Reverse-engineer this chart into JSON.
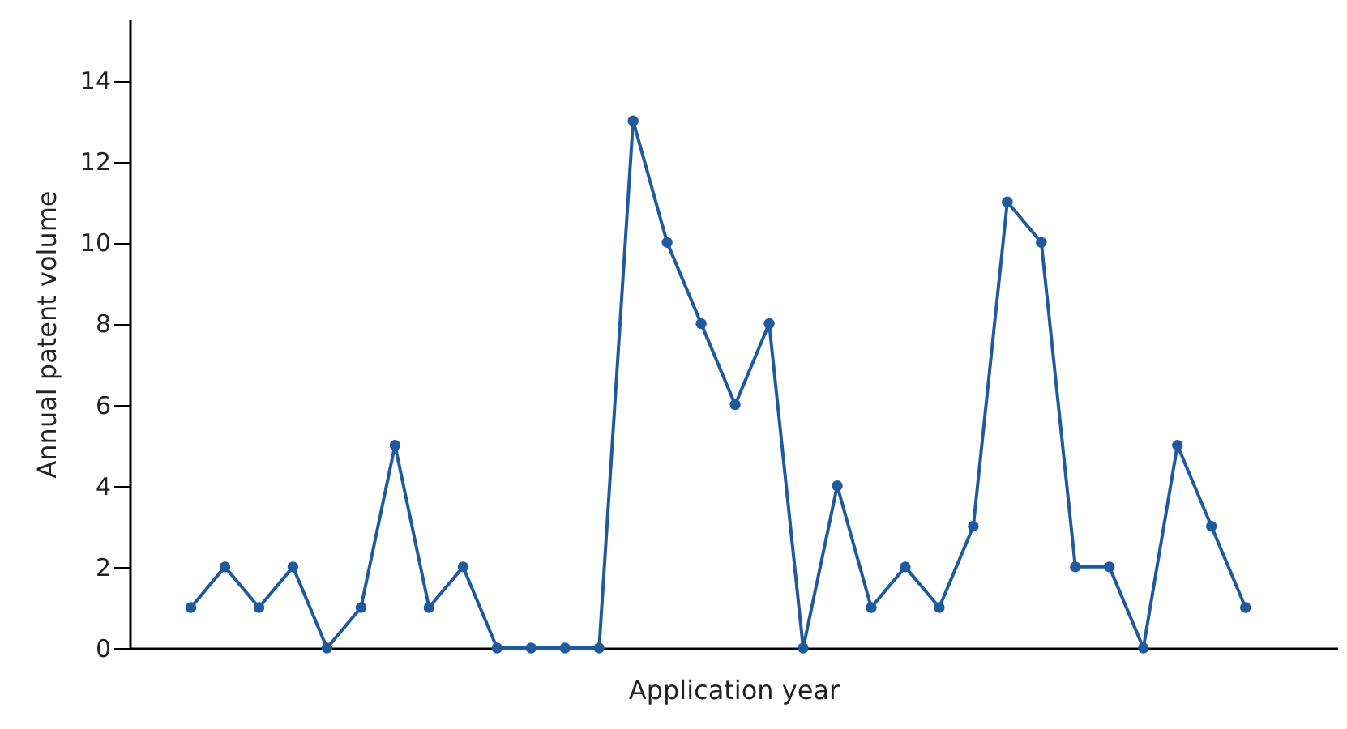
{
  "chart_data": {
    "type": "line",
    "xlabel": "Application year",
    "ylabel": "Annual patent volume",
    "categories": [
      null,
      null,
      null,
      null,
      null,
      null,
      null,
      null,
      null,
      null,
      null,
      null,
      null,
      null,
      null,
      null,
      null,
      null,
      null,
      null,
      null,
      null,
      null,
      null,
      null,
      null,
      null,
      null,
      null,
      null,
      null,
      null
    ],
    "series": [
      {
        "color": "#1f5a9e",
        "values": [
          1,
          2,
          1,
          2,
          0,
          1,
          5,
          1,
          2,
          0,
          0,
          0,
          0,
          13,
          10,
          8,
          6,
          8,
          0,
          4,
          1,
          2,
          1,
          3,
          11,
          10,
          2,
          2,
          0,
          5,
          3,
          1
        ]
      }
    ],
    "ylim": [
      0,
      15.5
    ],
    "yticks": [
      0,
      2,
      4,
      6,
      8,
      10,
      12,
      14
    ],
    "marker": "circle",
    "grid": false,
    "tick_labels": "y"
  }
}
